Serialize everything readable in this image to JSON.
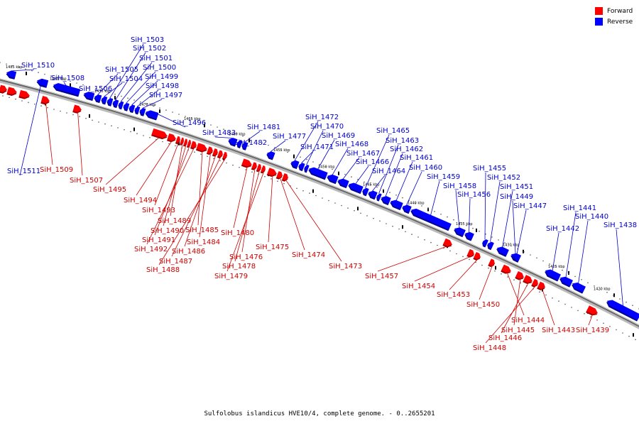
{
  "title": "Sulfolobus islandicus HVE10/4, complete genome. - 0..2655201",
  "legend": [
    {
      "label": "Forward",
      "color": "#ff0000"
    },
    {
      "label": "Reverse",
      "color": "#0000ff"
    }
  ],
  "colors": {
    "forward": "#ff0000",
    "reverse": "#0000ff",
    "forward_label": "#cc0000",
    "reverse_label": "#0000cc",
    "backbone": "#777777"
  },
  "ticks": [
    "1485 kbp",
    "1480 kbp",
    "1475 kbp",
    "1470 kbp",
    "1465 kbp",
    "1460 kbp",
    "1455 kbp",
    "1450 kbp",
    "1445 kbp",
    "1440 kbp",
    "1435 kbp",
    "1430 kbp",
    "1425 kbp",
    "1420 kbp"
  ],
  "reverse_genes": [
    "SiH_1510",
    "SiH_1508",
    "SiH_1506",
    "SiH_1505",
    "SiH_1504",
    "SiH_1503",
    "SiH_1502",
    "SiH_1501",
    "SiH_1500",
    "SiH_1499",
    "SiH_1498",
    "SiH_1497",
    "SiH_1496",
    "SiH_1511",
    "SiH_1483",
    "SiH_1482",
    "SiH_1481",
    "SiH_1477",
    "SiH_1472",
    "SiH_1471",
    "SiH_1470",
    "SiH_1469",
    "SiH_1468",
    "SiH_1467",
    "SiH_1466",
    "SiH_1465",
    "SiH_1464",
    "SiH_1463",
    "SiH_1462",
    "SiH_1461",
    "SiH_1460",
    "SiH_1459",
    "SiH_1458",
    "SiH_1456",
    "SiH_1455",
    "SiH_1452",
    "SiH_1451",
    "SiH_1449",
    "SiH_1447",
    "SiH_1442",
    "SiH_1441",
    "SiH_1440",
    "SiH_1438"
  ],
  "forward_genes": [
    "SiH_1509",
    "SiH_1507",
    "SiH_1495",
    "SiH_1494",
    "SiH_1493",
    "SiH_1489",
    "SiH_1490",
    "SiH_1491",
    "SiH_1492",
    "SiH_1485",
    "SiH_1484",
    "SiH_1486",
    "SiH_1487",
    "SiH_1488",
    "SiH_1480",
    "SiH_1476",
    "SiH_1478",
    "SiH_1479",
    "SiH_1475",
    "SiH_1474",
    "SiH_1473",
    "SiH_1457",
    "SiH_1454",
    "SiH_1453",
    "SiH_1450",
    "SiH_1444",
    "SiH_1445",
    "SiH_1446",
    "SiH_1448",
    "SiH_1443",
    "SiH_1439"
  ]
}
